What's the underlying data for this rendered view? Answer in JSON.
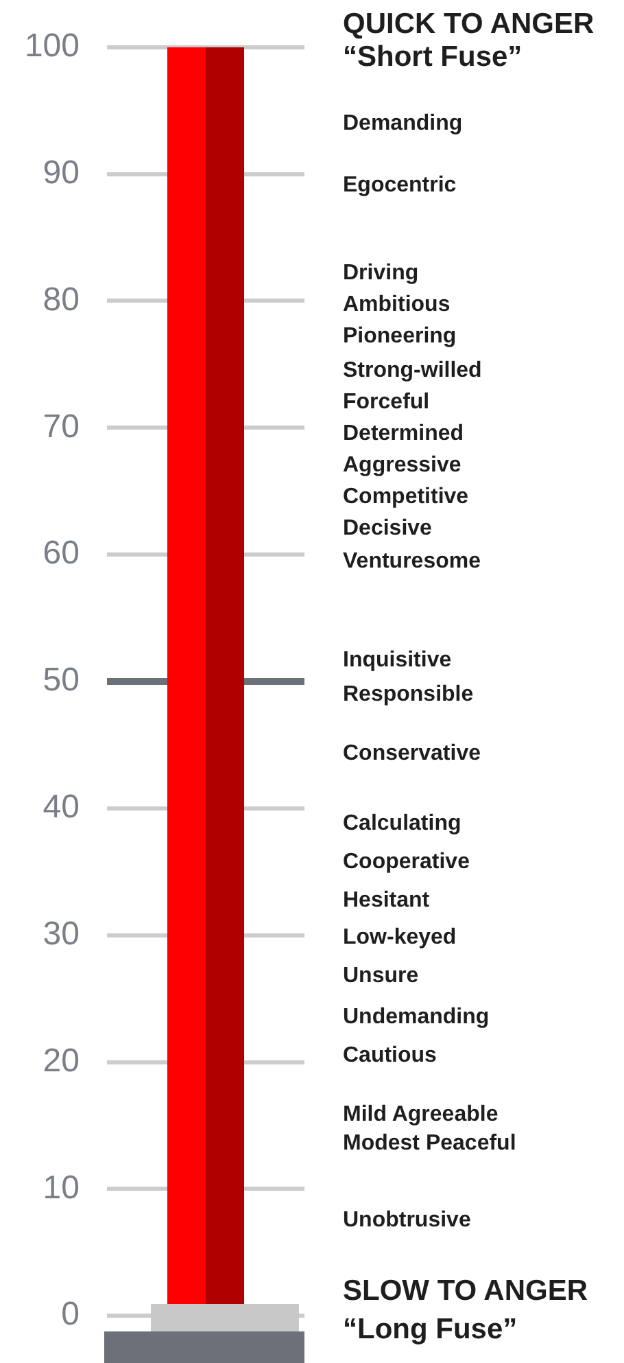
{
  "chart_data": {
    "type": "bar",
    "categories": [
      null
    ],
    "series": [
      {
        "color": "#ff0000",
        "values": [
          100
        ]
      },
      {
        "color": "#b00000",
        "values": [
          100
        ]
      }
    ],
    "ylim": [
      0,
      100
    ],
    "yticks": [
      0,
      10,
      20,
      30,
      40,
      50,
      60,
      70,
      80,
      90,
      100
    ],
    "grid": "y",
    "legend": false,
    "ref_lines": [
      {
        "axis": "y",
        "value": 50,
        "color": "#6b7079"
      }
    ],
    "annotations": [
      "QUICK TO ANGER",
      "“Short Fuse”",
      "Demanding",
      "Egocentric",
      "Driving",
      "Ambitious",
      "Pioneering",
      "Strong-willed",
      "Forceful",
      "Determined",
      "Aggressive",
      "Competitive",
      "Decisive",
      "Venturesome",
      "Inquisitive",
      "Responsible",
      "Conservative",
      "Calculating",
      "Cooperative",
      "Hesitant",
      "Low-keyed",
      "Unsure",
      "Undemanding",
      "Cautious",
      "Mild Agreeable",
      "Modest Peaceful",
      "Unobtrusive",
      "SLOW TO ANGER",
      "“Long Fuse”"
    ]
  }
}
